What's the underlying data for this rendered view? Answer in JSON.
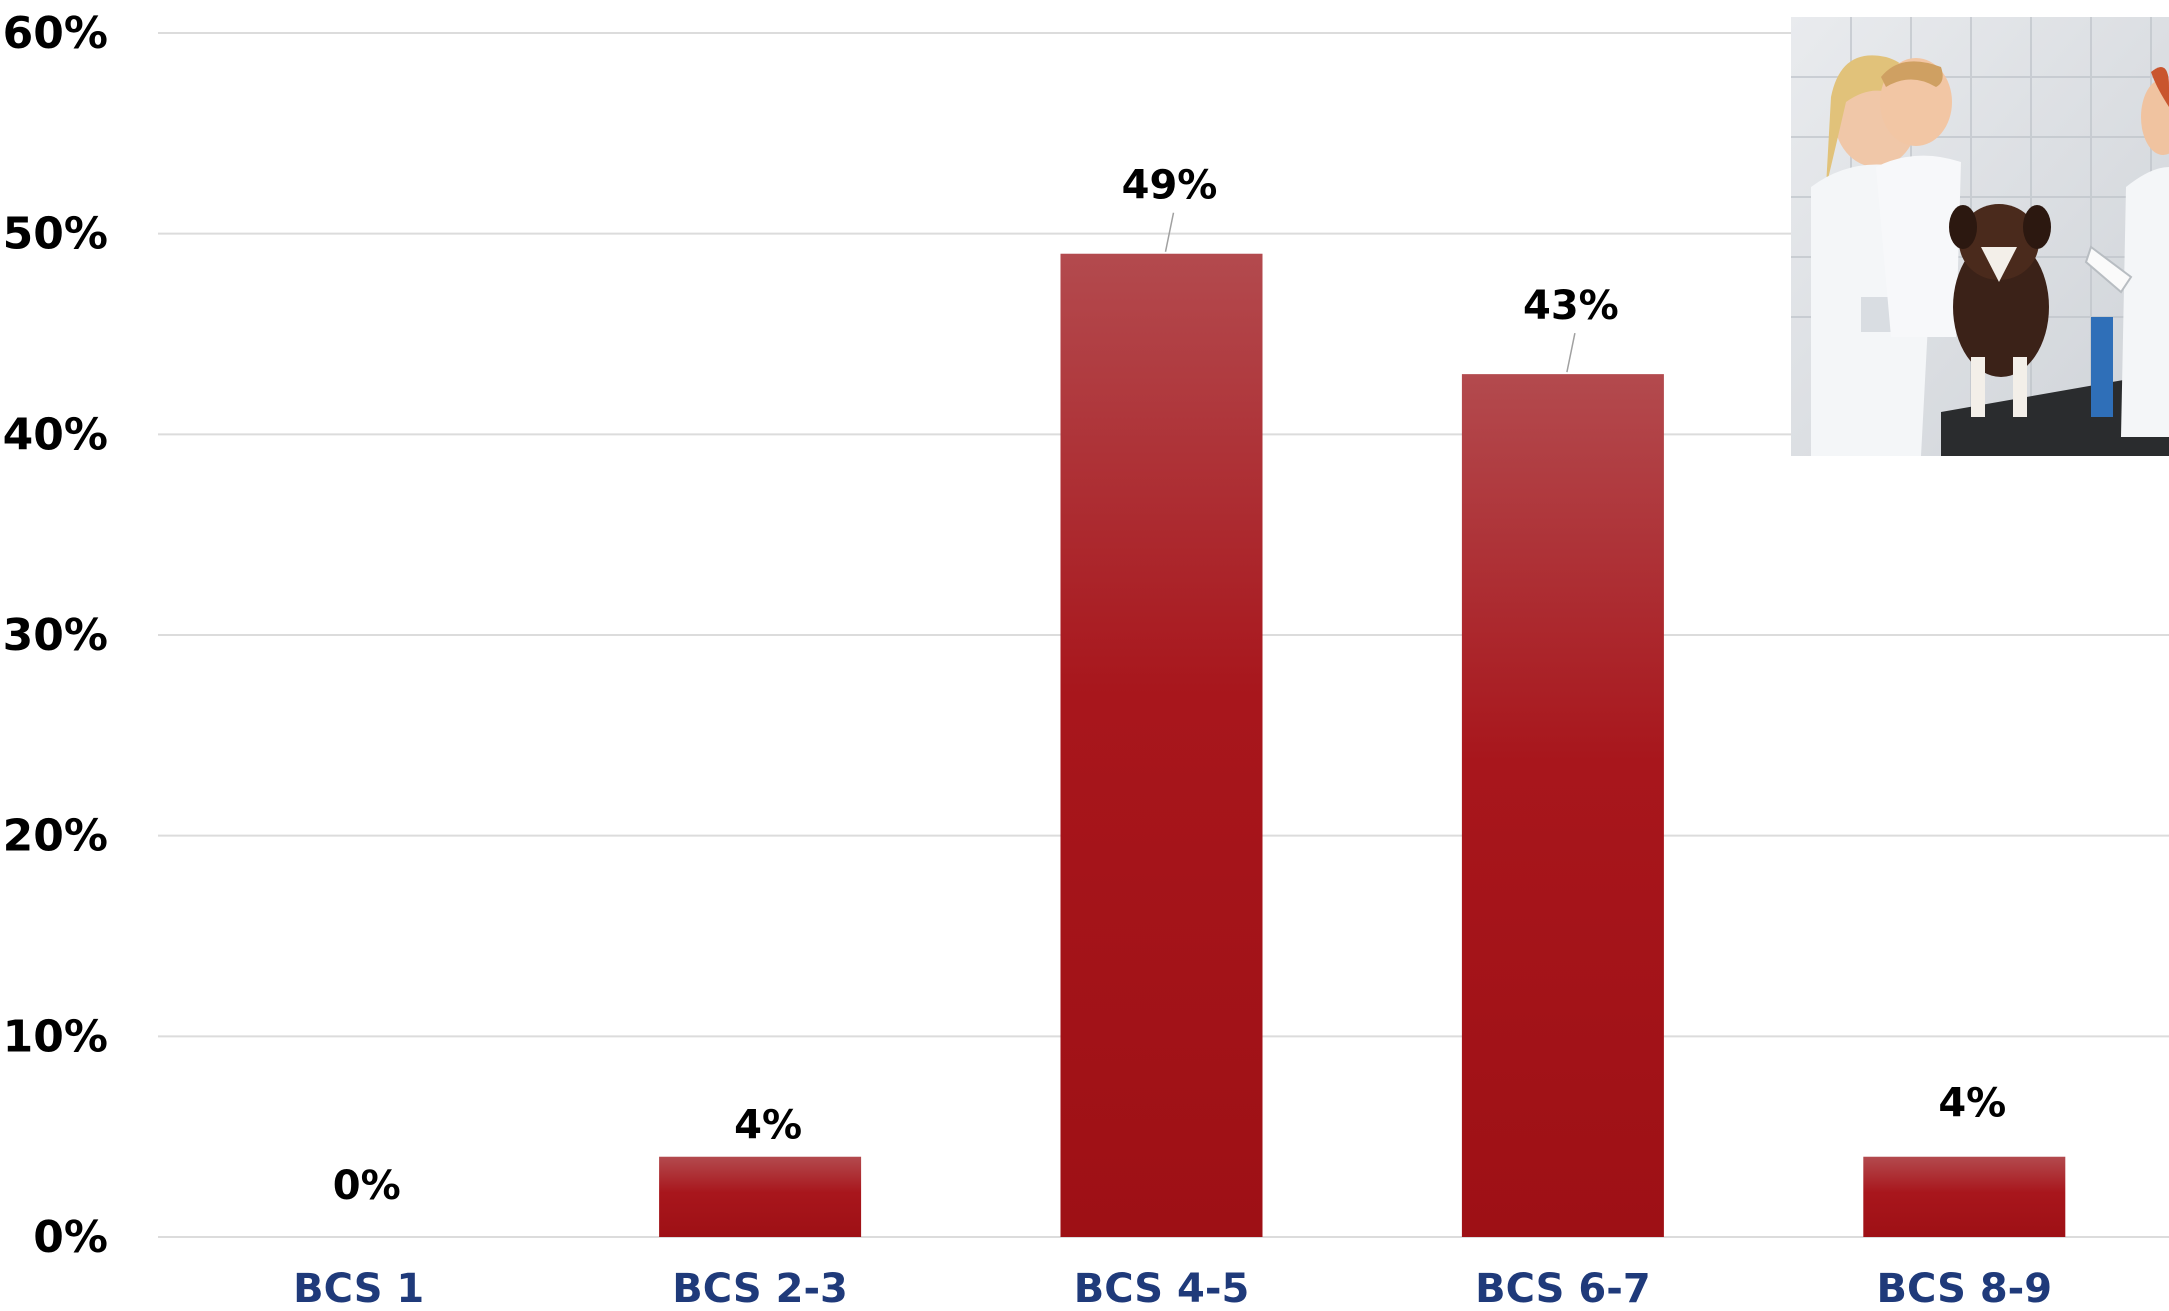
{
  "chart_data": {
    "type": "bar",
    "categories": [
      "BCS 1",
      "BCS 2-3",
      "BCS 4-5",
      "BCS 6-7",
      "BCS 8-9"
    ],
    "values": [
      0,
      4,
      49,
      43,
      4
    ],
    "value_labels": [
      "0%",
      "4%",
      "49%",
      "43%",
      "4%"
    ],
    "y_ticks": [
      "0%",
      "10%",
      "20%",
      "30%",
      "40%",
      "50%",
      "60%"
    ],
    "ylim": [
      0,
      60
    ],
    "grid": true,
    "legend": "none",
    "bar_color_top": "#b34a4e",
    "bar_color_bottom": "#9e1015",
    "category_label_color": "#1f3a7a",
    "grid_color": "#dcdcdc"
  },
  "photo": {
    "icon": "veterinary-exam-photo"
  }
}
